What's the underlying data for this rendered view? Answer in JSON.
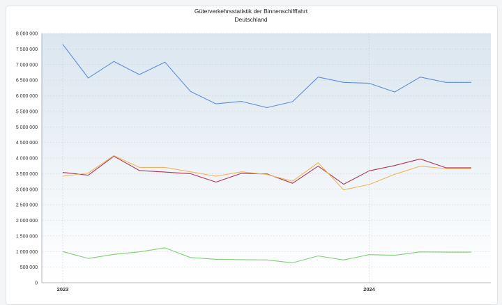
{
  "chart_data": {
    "type": "line",
    "title": "Güterverkehrsstatistik der Binnenschifffahrt",
    "subtitle": "Deutschland",
    "x_tick_labels": [
      "2023",
      "2024"
    ],
    "y_tick_labels": [
      "0",
      "500 000",
      "1 000 000",
      "1 500 000",
      "2 000 000",
      "2 500 000",
      "3 000 000",
      "3 500 000",
      "4 000 000",
      "4 500 000",
      "5 000 000",
      "5 500 000",
      "6 000 000",
      "6 500 000",
      "7 000 000",
      "7 500 000",
      "8 000 000"
    ],
    "ylim": [
      0,
      8000000
    ],
    "x": [
      "2023-01",
      "2023-02",
      "2023-03",
      "2023-04",
      "2023-05",
      "2023-06",
      "2023-07",
      "2023-08",
      "2023-09",
      "2023-10",
      "2023-11",
      "2023-12",
      "2024-01",
      "2024-02",
      "2024-03",
      "2024-04",
      "2024-05"
    ],
    "grid": true,
    "series": [
      {
        "color": "#5b8dd8",
        "values": [
          7650000,
          6570000,
          7100000,
          6680000,
          7080000,
          6140000,
          5740000,
          5820000,
          5620000,
          5810000,
          6600000,
          6430000,
          6400000,
          6120000,
          6600000,
          6430000,
          6430000
        ]
      },
      {
        "color": "#b03552",
        "values": [
          3540000,
          3450000,
          4060000,
          3600000,
          3550000,
          3500000,
          3230000,
          3510000,
          3490000,
          3190000,
          3740000,
          3160000,
          3590000,
          3760000,
          3970000,
          3690000,
          3690000
        ]
      },
      {
        "color": "#f2b35c",
        "values": [
          3420000,
          3520000,
          4080000,
          3700000,
          3700000,
          3560000,
          3420000,
          3560000,
          3470000,
          3260000,
          3850000,
          2980000,
          3150000,
          3480000,
          3740000,
          3660000,
          3660000
        ]
      },
      {
        "color": "#7fcf73",
        "values": [
          1000000,
          780000,
          910000,
          990000,
          1120000,
          810000,
          750000,
          740000,
          730000,
          640000,
          860000,
          730000,
          900000,
          880000,
          990000,
          980000,
          980000
        ]
      }
    ]
  }
}
